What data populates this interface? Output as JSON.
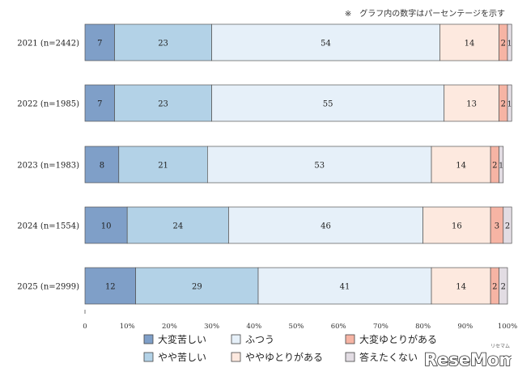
{
  "note": "※　グラフ内の数字はパーセンテージを示す",
  "logo": {
    "text": "ReseMom",
    "sub": "リセマム"
  },
  "chart_data": {
    "type": "bar",
    "orientation": "horizontal",
    "stacked": true,
    "categories": [
      "2021 (n=2442)",
      "2022 (n=1985)",
      "2023 (n=1983)",
      "2024 (n=1554)",
      "2025 (n=2999)"
    ],
    "series": [
      {
        "name": "大変苦しい",
        "color": "#7f9fc8",
        "values": [
          7,
          7,
          8,
          10,
          12
        ]
      },
      {
        "name": "やや苦しい",
        "color": "#b3d2e7",
        "values": [
          23,
          23,
          21,
          24,
          29
        ]
      },
      {
        "name": "ふつう",
        "color": "#e6f0f9",
        "values": [
          54,
          55,
          53,
          46,
          41
        ]
      },
      {
        "name": "ややゆとりがある",
        "color": "#fde9df",
        "values": [
          14,
          13,
          14,
          16,
          14
        ]
      },
      {
        "name": "大変ゆとりがある",
        "color": "#f6b4a4",
        "values": [
          2,
          2,
          2,
          3,
          2
        ]
      },
      {
        "name": "答えたくない",
        "color": "#e2dce3",
        "values": [
          1,
          1,
          1,
          2,
          2
        ]
      }
    ],
    "xlim": [
      0,
      100
    ],
    "xticks": [
      "0",
      "10%",
      "20%",
      "30%",
      "40%",
      "50%",
      "60%",
      "70%",
      "80%",
      "90%",
      "100%"
    ],
    "legend_position": "bottom",
    "legend_order": [
      "大変苦しい",
      "ふつう",
      "大変ゆとりがある",
      "やや苦しい",
      "ややゆとりがある",
      "答えたくない"
    ]
  }
}
